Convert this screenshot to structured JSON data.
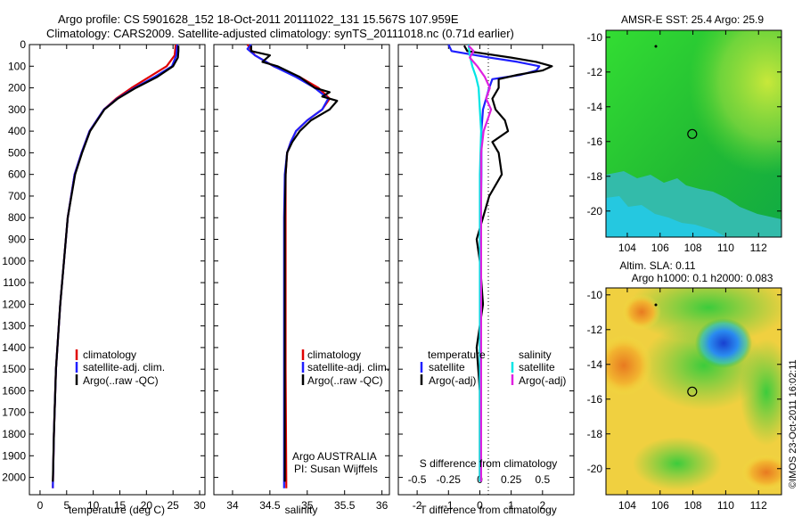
{
  "header": {
    "title_line1": "Argo profile: CS 5901628_152 18-Oct-2011 20111022_131 15.567S 107.959E",
    "title_line2": "Climatology: CARS2009. Satellite-adjusted climatology: synTS_20111018.nc (0.71d earlier)"
  },
  "colors": {
    "climatology": "#e00000",
    "satellite": "#1f1fff",
    "argo": "#000000",
    "satellite_salinity": "#00e5e5",
    "argo_salinity": "#e020e0"
  },
  "chart_data": [
    {
      "type": "line",
      "name": "temperature",
      "xlabel": "temperature (deg C)",
      "ylabel": "",
      "xlim": [
        -2,
        31
      ],
      "ylim": [
        2080,
        0
      ],
      "xticks": [
        0,
        5,
        10,
        15,
        20,
        25,
        30
      ],
      "yticks": [
        0,
        100,
        200,
        300,
        400,
        500,
        600,
        700,
        800,
        900,
        1000,
        1100,
        1200,
        1300,
        1400,
        1500,
        1600,
        1700,
        1800,
        1900,
        2000
      ],
      "legend": [
        "climatology",
        "satellite-adj. clim.",
        "Argo(..raw -QC)"
      ],
      "series": [
        {
          "name": "climatology",
          "pressure": [
            0,
            50,
            100,
            150,
            200,
            250,
            300,
            400,
            500,
            600,
            800,
            1000,
            1200,
            1500,
            1800,
            2050
          ],
          "values": [
            25.5,
            25.3,
            23.8,
            20.5,
            17.2,
            14.3,
            12.0,
            9.3,
            7.8,
            6.5,
            5.2,
            4.5,
            3.8,
            3.0,
            2.6,
            2.4
          ]
        },
        {
          "name": "satellite-adj. clim.",
          "pressure": [
            0,
            50,
            100,
            150,
            200,
            250,
            300,
            400,
            500,
            600,
            800,
            1000,
            1200,
            1500,
            1800,
            2050
          ],
          "values": [
            25.8,
            25.6,
            24.8,
            21.5,
            17.8,
            14.5,
            12.0,
            9.3,
            7.8,
            6.5,
            5.2,
            4.5,
            3.8,
            3.0,
            2.6,
            2.4
          ]
        },
        {
          "name": "Argo(..raw -QC)",
          "pressure": [
            5,
            30,
            60,
            100,
            150,
            200,
            250,
            300,
            400,
            500,
            600,
            800,
            1000,
            1200,
            1500,
            1800,
            2020
          ],
          "values": [
            26.0,
            26.0,
            25.9,
            25.0,
            22.0,
            18.0,
            14.6,
            12.1,
            9.4,
            7.9,
            6.6,
            5.2,
            4.5,
            3.8,
            3.0,
            2.6,
            2.4
          ]
        }
      ]
    },
    {
      "type": "line",
      "name": "salinity",
      "xlabel": "salinity",
      "xlim": [
        33.75,
        36.1
      ],
      "ylim": [
        2080,
        0
      ],
      "xticks": [
        34,
        34.5,
        35,
        35.5,
        36
      ],
      "legend": [
        "climatology",
        "satellite-adj. clim.",
        "Argo(..raw -QC)"
      ],
      "annotation_line1": "Argo AUSTRALIA",
      "annotation_line2": "PI: Susan Wijffels",
      "series": [
        {
          "name": "climatology",
          "pressure": [
            0,
            50,
            100,
            150,
            200,
            250,
            300,
            350,
            400,
            450,
            500,
            600,
            800,
            1000,
            1500,
            2050
          ],
          "values": [
            34.2,
            34.3,
            34.55,
            34.9,
            35.15,
            35.3,
            35.2,
            35.0,
            34.85,
            34.78,
            34.73,
            34.71,
            34.71,
            34.71,
            34.71,
            34.72
          ]
        },
        {
          "name": "satellite-adj. clim.",
          "pressure": [
            0,
            20,
            50,
            100,
            150,
            200,
            250,
            300,
            350,
            400,
            450,
            500,
            600,
            800,
            1000,
            1500,
            2050
          ],
          "values": [
            34.25,
            34.2,
            34.3,
            34.55,
            34.85,
            35.1,
            35.28,
            35.2,
            35.0,
            34.85,
            34.78,
            34.73,
            34.7,
            34.69,
            34.69,
            34.69,
            34.69
          ]
        },
        {
          "name": "Argo(..raw -QC)",
          "pressure": [
            5,
            30,
            50,
            80,
            100,
            150,
            200,
            220,
            240,
            260,
            300,
            350,
            400,
            450,
            500,
            600,
            800,
            1000,
            1500,
            2020
          ],
          "values": [
            34.25,
            34.25,
            34.5,
            34.4,
            34.6,
            34.9,
            35.1,
            35.3,
            35.2,
            35.4,
            35.3,
            35.05,
            34.9,
            34.8,
            34.73,
            34.71,
            34.7,
            34.7,
            34.7,
            34.7
          ]
        }
      ]
    },
    {
      "type": "line",
      "name": "differences",
      "xlabel": "T difference from climatology",
      "xlabel_top": "S difference from climatology",
      "xlim": [
        -2.6,
        3.0
      ],
      "ylim": [
        2080,
        0
      ],
      "xticks": [
        -2,
        -1,
        0,
        1,
        2
      ],
      "xticks_s": [
        "-0.5",
        "-0.25",
        "0",
        "0.25",
        "0.5"
      ],
      "legend_temperature_title": "temperature",
      "legend_salinity_title": "salinity",
      "legend": [
        "satellite",
        "Argo(-adj)",
        "satellite",
        "Argo(-adj)"
      ],
      "series": [
        {
          "name": "temperature satellite",
          "pressure": [
            0,
            30,
            60,
            80,
            100,
            120,
            140,
            160,
            200,
            300,
            400,
            600,
            1000,
            1500,
            2020
          ],
          "values": [
            -1.0,
            -0.9,
            0.3,
            1.2,
            1.9,
            1.8,
            1.3,
            0.4,
            0.3,
            0.1,
            0.05,
            0.05,
            0.02,
            0.02,
            0.02
          ]
        },
        {
          "name": "temperature Argo(-adj)",
          "pressure": [
            5,
            30,
            60,
            80,
            100,
            120,
            140,
            160,
            200,
            250,
            300,
            350,
            400,
            450,
            500,
            600,
            700,
            800,
            900,
            1000,
            1200,
            1400,
            1600,
            1800,
            2020
          ],
          "values": [
            -0.5,
            -0.4,
            1.0,
            1.8,
            2.3,
            2.0,
            1.2,
            0.6,
            0.6,
            0.4,
            0.5,
            0.8,
            0.9,
            0.4,
            0.6,
            0.7,
            0.3,
            0.1,
            -0.1,
            0.0,
            0.1,
            -0.1,
            0.0,
            0.0,
            0.0
          ]
        },
        {
          "name": "salinity satellite",
          "pressure": [
            0,
            50,
            100,
            150,
            200,
            300,
            400,
            600,
            1000,
            1500,
            2020
          ],
          "values": [
            -0.09,
            -0.08,
            -0.06,
            -0.03,
            -0.01,
            0.0,
            0.01,
            0.0,
            0.0,
            0.0,
            0.0
          ]
        },
        {
          "name": "salinity Argo(-adj)",
          "pressure": [
            5,
            30,
            60,
            100,
            150,
            200,
            250,
            300,
            350,
            400,
            450,
            500,
            600,
            800,
            1000,
            1500,
            2020
          ],
          "values": [
            -0.09,
            -0.05,
            -0.08,
            -0.02,
            0.04,
            0.08,
            0.05,
            0.09,
            0.06,
            0.03,
            0.02,
            0.01,
            0.01,
            0.01,
            0.01,
            0.01,
            0.01
          ]
        }
      ]
    },
    {
      "type": "heatmap",
      "name": "sst",
      "title": "AMSR-E SST: 25.4  Argo: 25.9",
      "xlim": [
        102.7,
        113.4
      ],
      "ylim": [
        -21.5,
        -9.6
      ],
      "xticks": [
        104,
        106,
        108,
        110,
        112
      ],
      "yticks": [
        -10,
        -12,
        -14,
        -16,
        -18,
        -20
      ],
      "argo_position": [
        107.959,
        -15.567
      ]
    },
    {
      "type": "heatmap",
      "name": "sla",
      "title_line1": "Altim. SLA: 0.11",
      "title_line2": "Argo h1000: 0.1 h2000: 0.083",
      "xlim": [
        102.7,
        113.4
      ],
      "ylim": [
        -21.5,
        -9.6
      ],
      "xticks": [
        104,
        106,
        108,
        110,
        112
      ],
      "yticks": [
        -10,
        -12,
        -14,
        -16,
        -18,
        -20
      ],
      "argo_position": [
        107.959,
        -15.567
      ]
    }
  ],
  "side_label": "©IMOS 23-Oct-2011 16:02:11"
}
